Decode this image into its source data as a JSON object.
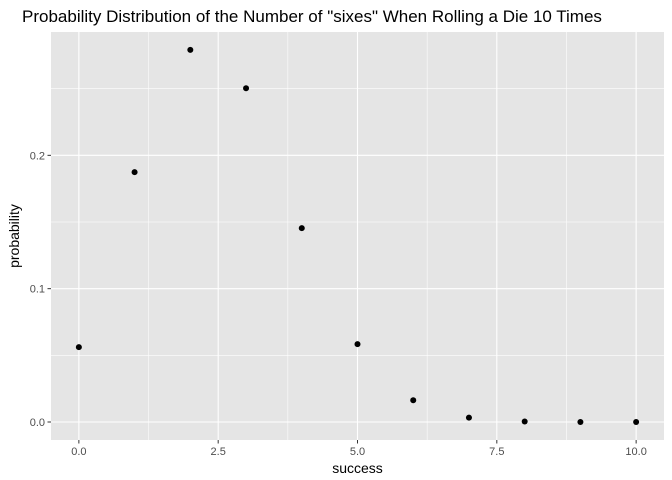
{
  "chart_data": {
    "type": "scatter",
    "title": "Probability Distribution of the Number of \"sixes\" When Rolling a Die 10 Times",
    "xlabel": "success",
    "ylabel": "probability",
    "xlim": [
      -0.5,
      10.5
    ],
    "ylim": [
      -0.0135,
      0.2925
    ],
    "x_ticks": [
      0,
      2.5,
      5,
      7.5,
      10
    ],
    "x_tick_labels": [
      "0.0",
      "2.5",
      "5.0",
      "7.5",
      "10.0"
    ],
    "y_ticks": [
      0,
      0.1,
      0.2
    ],
    "y_tick_labels": [
      "0.0",
      "0.1",
      "0.2"
    ],
    "grid": true,
    "panel_color": "#e5e5e5",
    "grid_color": "#ffffff",
    "point_color": "#000000",
    "points": [
      {
        "x": 0,
        "y": 0.0562
      },
      {
        "x": 1,
        "y": 0.1874
      },
      {
        "x": 2,
        "y": 0.2791
      },
      {
        "x": 3,
        "y": 0.2503
      },
      {
        "x": 4,
        "y": 0.1454
      },
      {
        "x": 5,
        "y": 0.0584
      },
      {
        "x": 6,
        "y": 0.0163
      },
      {
        "x": 7,
        "y": 0.0033
      },
      {
        "x": 8,
        "y": 0.0004
      },
      {
        "x": 9,
        "y": 0.0
      },
      {
        "x": 10,
        "y": 0.0
      }
    ]
  }
}
